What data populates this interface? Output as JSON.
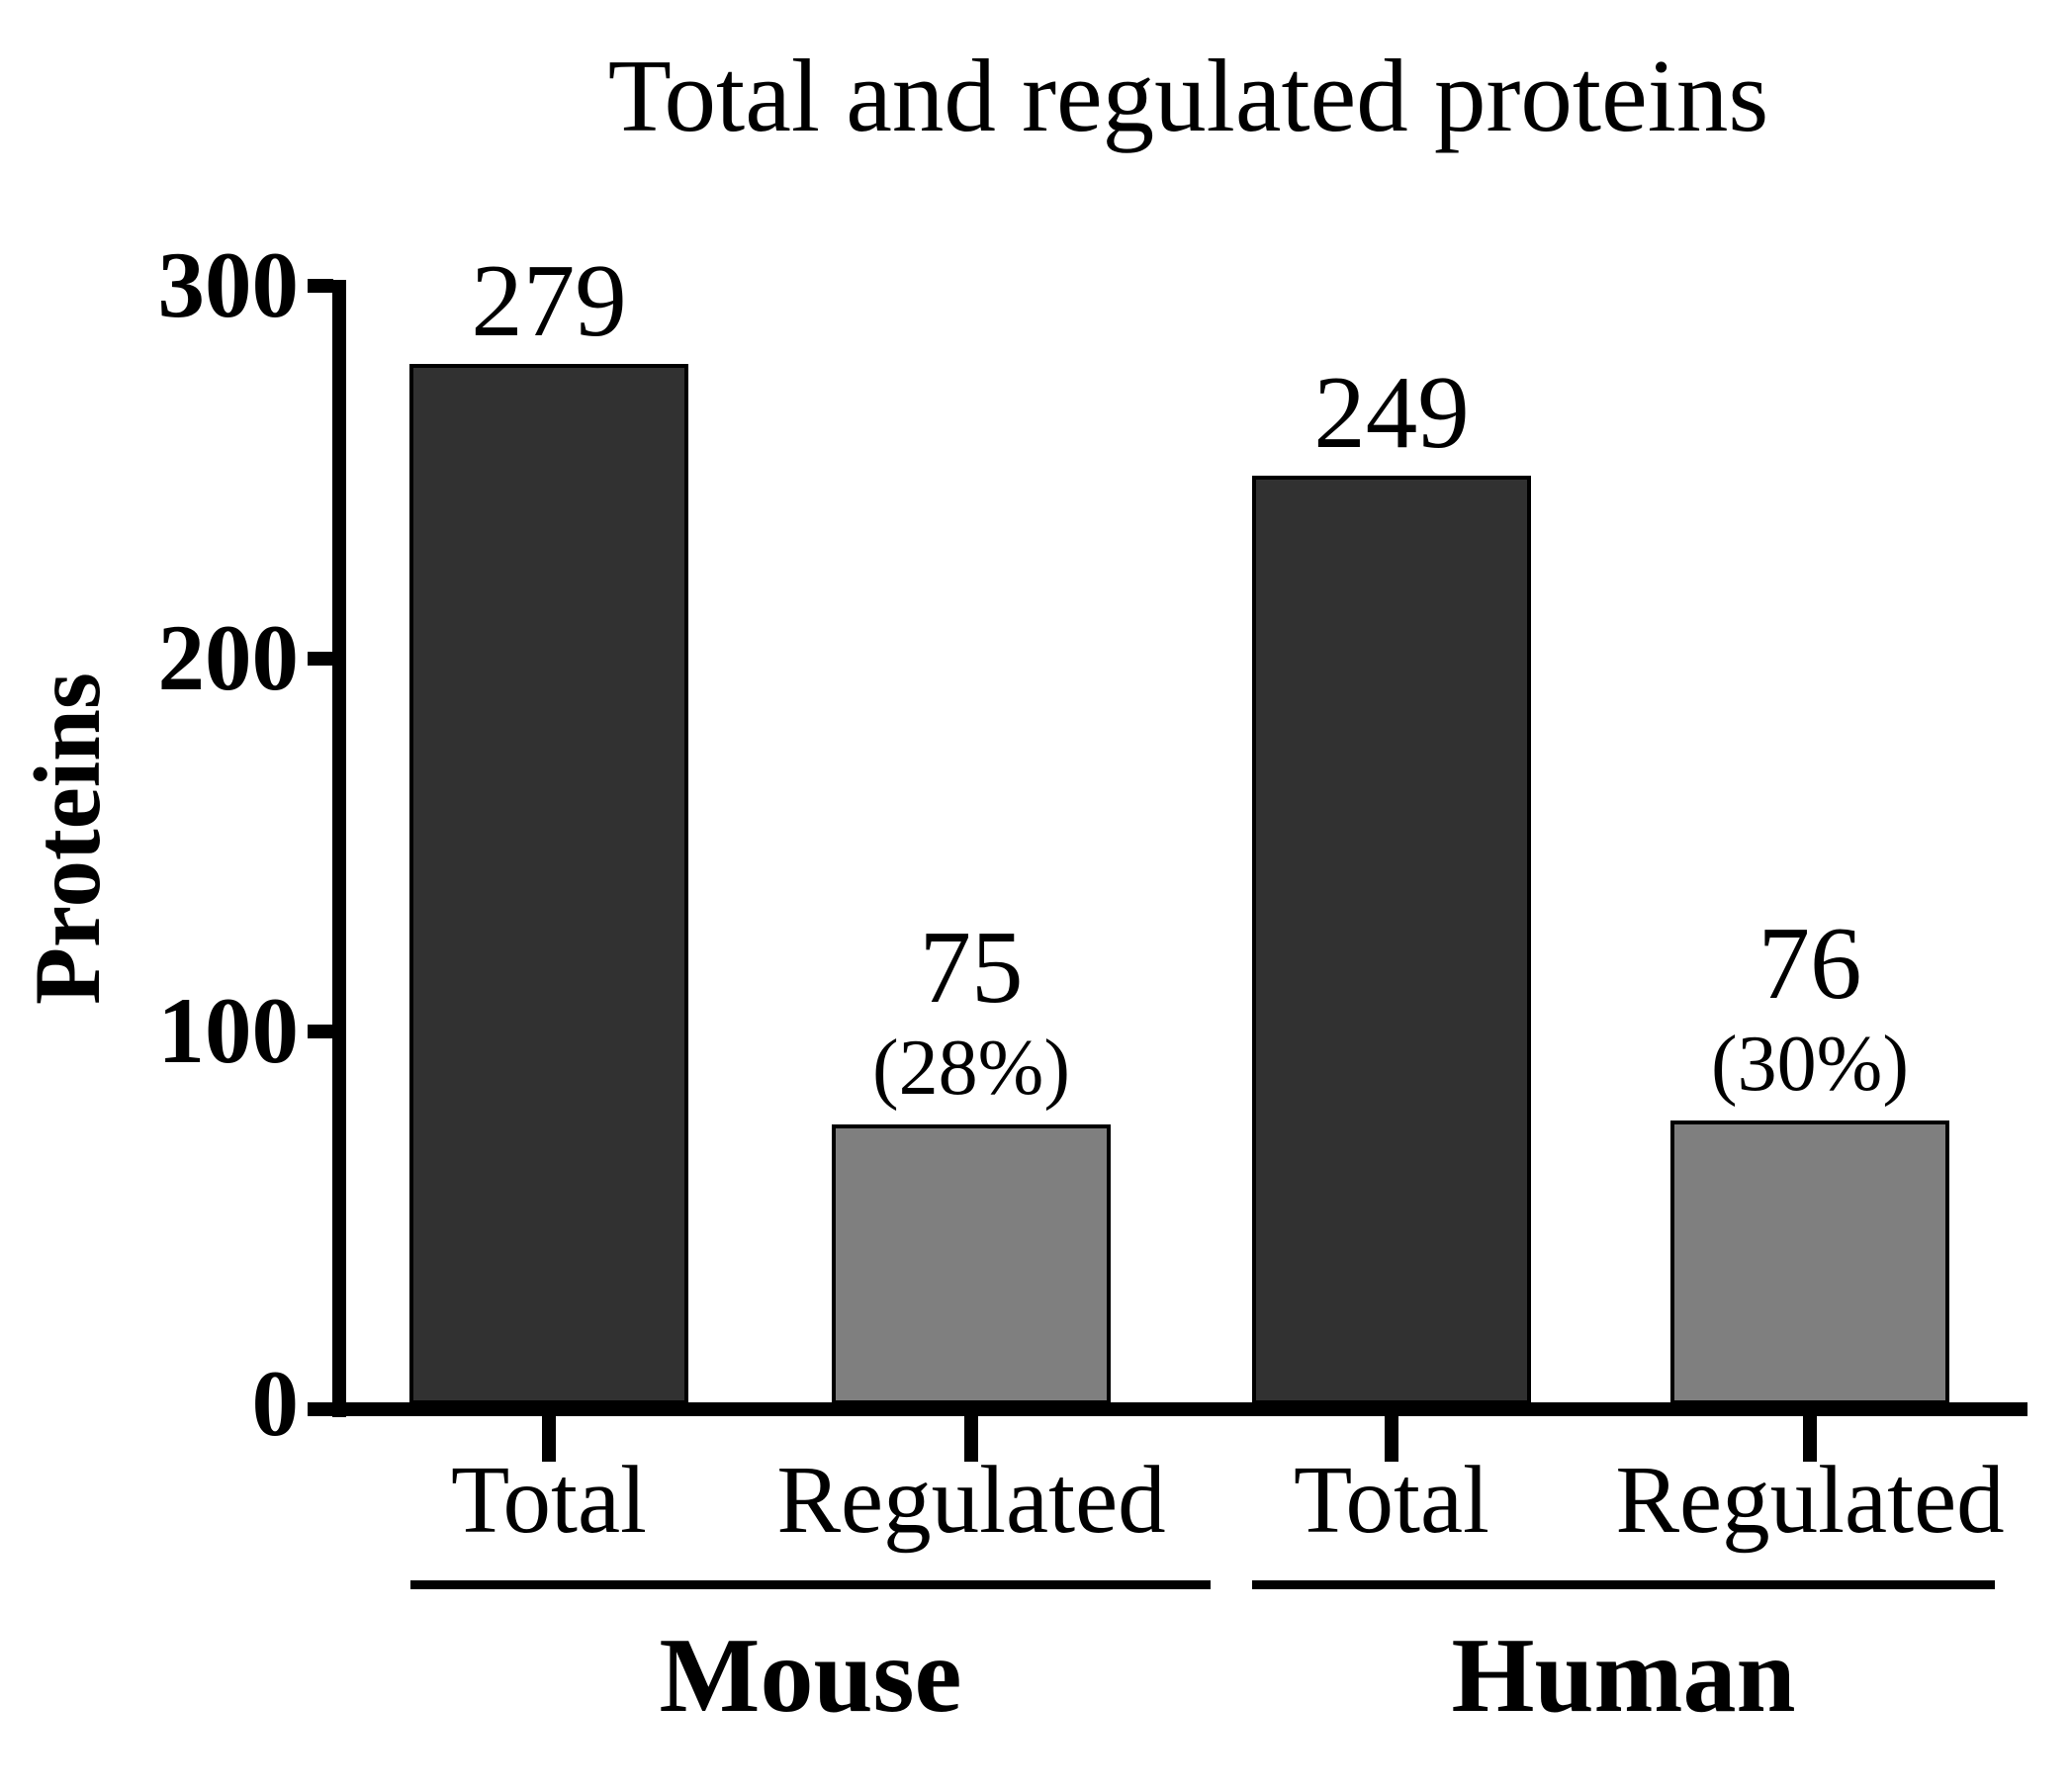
{
  "figure": {
    "title": "Total and regulated proteins"
  },
  "chart_data": {
    "type": "bar",
    "title": "Total and regulated proteins",
    "xlabel": "",
    "ylabel": "Proteins",
    "ylim": [
      0,
      300
    ],
    "yticks": [
      0,
      100,
      200,
      300
    ],
    "grid": false,
    "legend": "none",
    "background_color": "#ffffff",
    "axis_color": "#000000",
    "bar_colors": {
      "total": "#313131",
      "regulated": "#7f7f7f"
    },
    "categories": [
      "Total",
      "Regulated",
      "Total",
      "Regulated"
    ],
    "bars": [
      {
        "group": "Mouse",
        "category": "Total",
        "value": 279,
        "value_label": "279",
        "percent_label": "",
        "color": "#313131"
      },
      {
        "group": "Mouse",
        "category": "Regulated",
        "value": 75,
        "value_label": "75",
        "percent_label": "(28%)",
        "color": "#7f7f7f"
      },
      {
        "group": "Human",
        "category": "Total",
        "value": 249,
        "value_label": "249",
        "percent_label": "",
        "color": "#313131"
      },
      {
        "group": "Human",
        "category": "Regulated",
        "value": 76,
        "value_label": "76",
        "percent_label": "(30%)",
        "color": "#7f7f7f"
      }
    ],
    "groups": [
      {
        "label": "Mouse",
        "bar_indexes": [
          0,
          1
        ]
      },
      {
        "label": "Human",
        "bar_indexes": [
          2,
          3
        ]
      }
    ]
  }
}
